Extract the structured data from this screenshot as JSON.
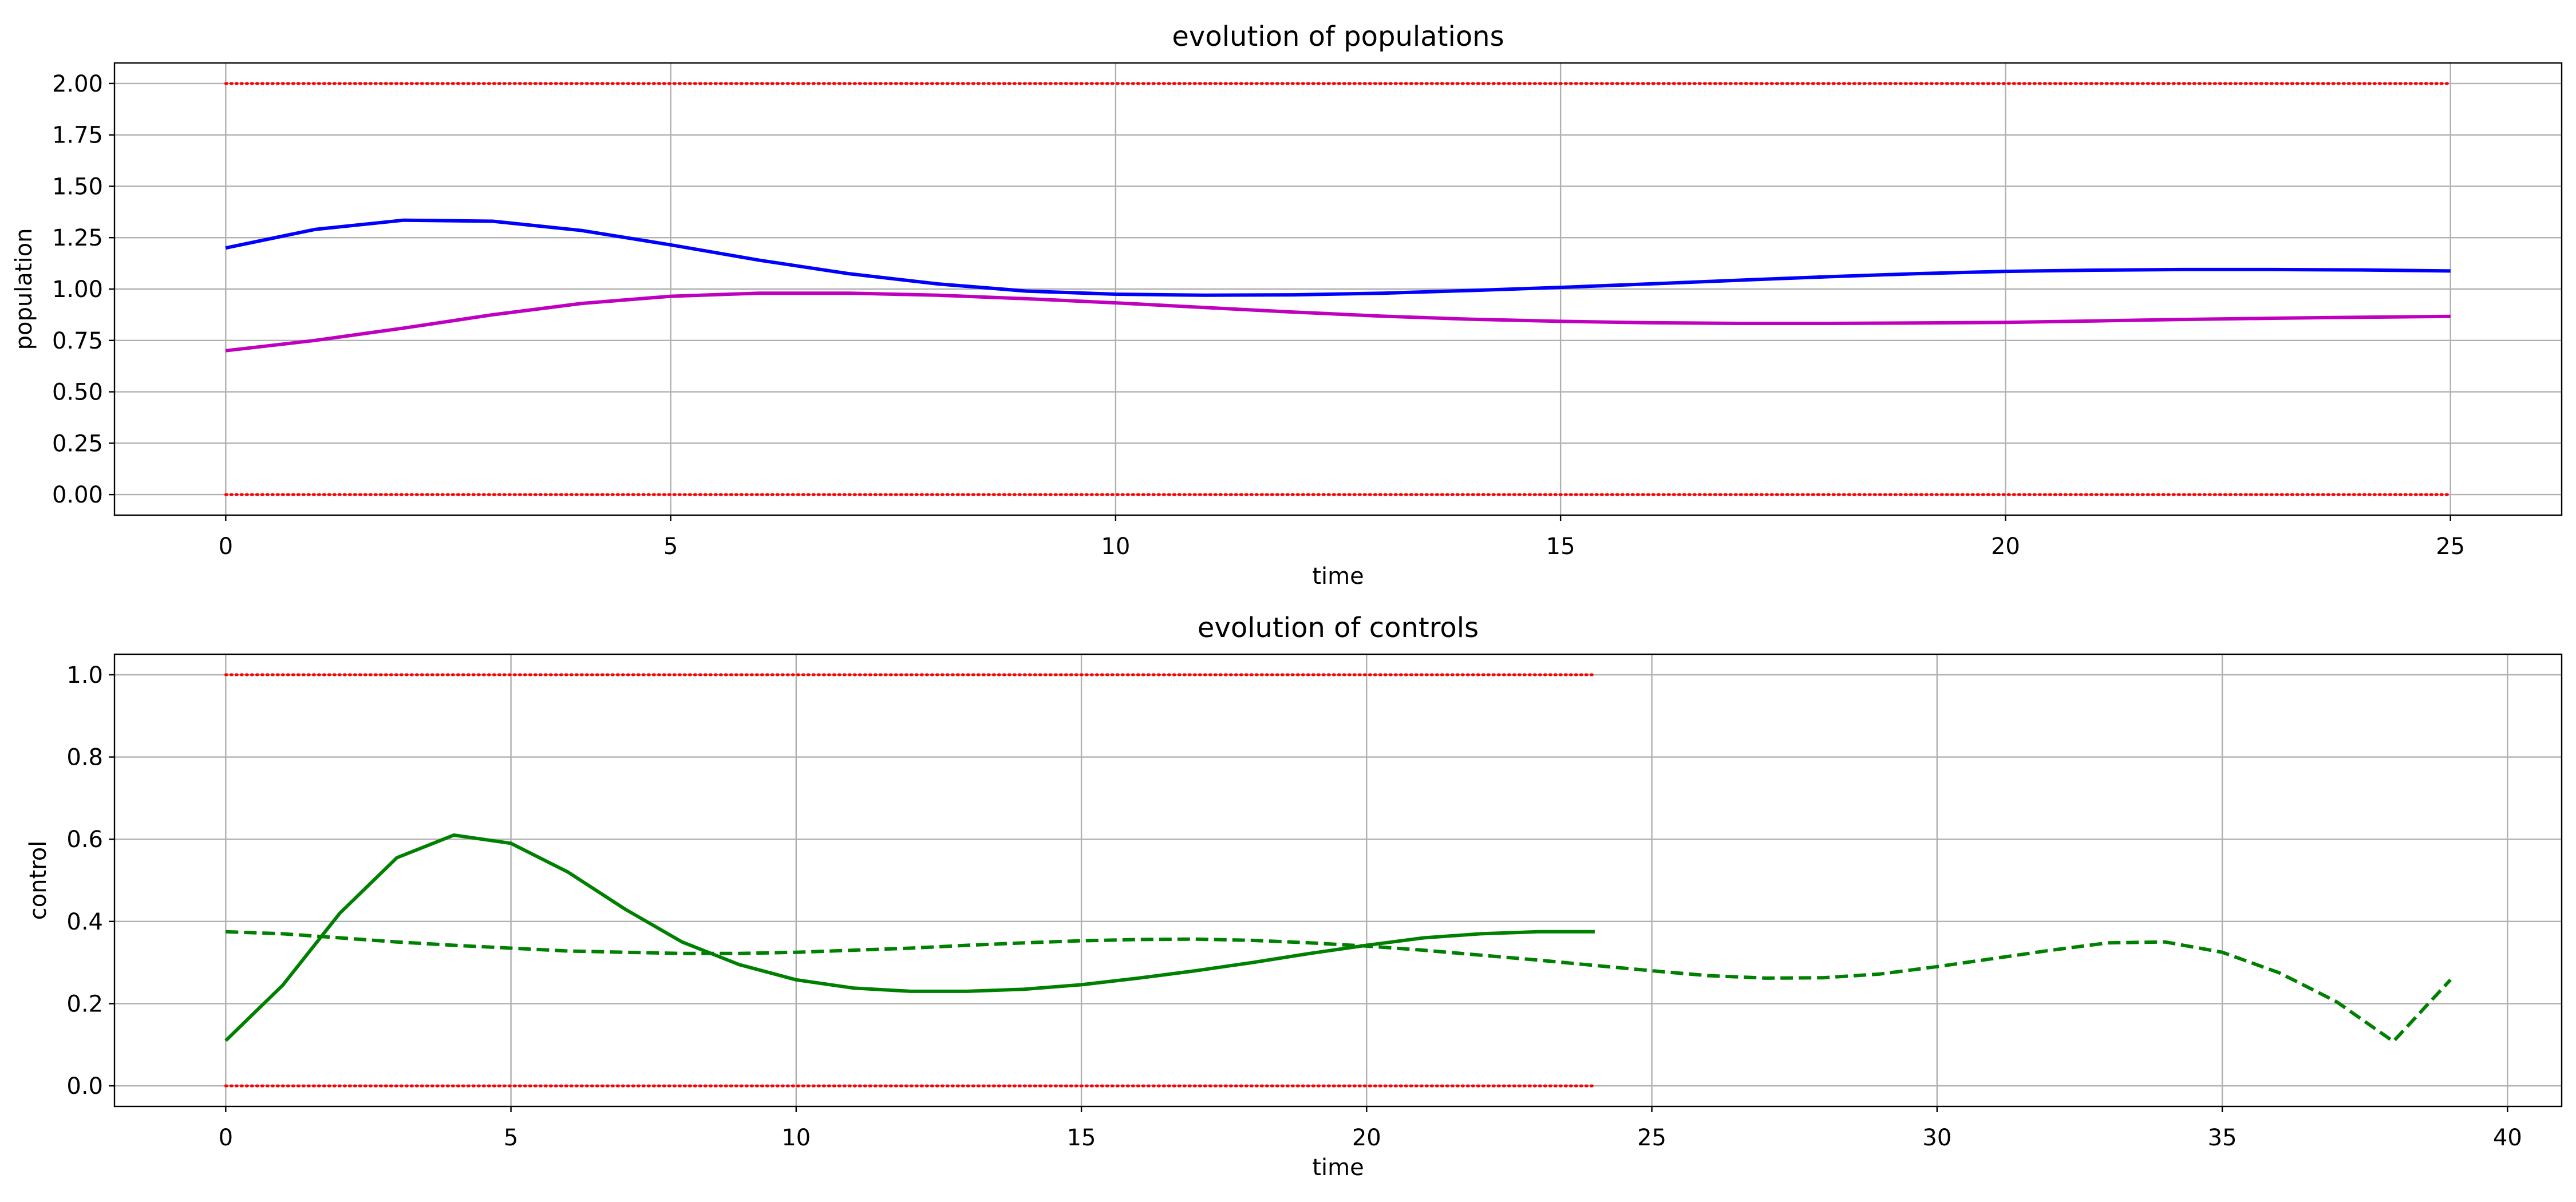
{
  "colors": {
    "grid": "#b0b0b0",
    "axes": "#000000",
    "bound": "#ff0000",
    "prey": "#0000ff",
    "predator": "#bf00bf",
    "control": "#008000"
  },
  "chart_data": [
    {
      "type": "line",
      "title": "evolution of populations",
      "xlabel": "time",
      "ylabel": "population",
      "xlim": [
        -1.25,
        26.25
      ],
      "ylim": [
        -0.1,
        2.1
      ],
      "grid": true,
      "xticks": [
        0,
        5,
        10,
        15,
        20,
        25
      ],
      "yticks": [
        0,
        0.25,
        0.5,
        0.75,
        1.0,
        1.25,
        1.5,
        1.75,
        2.0
      ],
      "yticklabels": [
        "0.00",
        "0.25",
        "0.50",
        "0.75",
        "1.00",
        "1.25",
        "1.50",
        "1.75",
        "2.00"
      ],
      "series": [
        {
          "color": "#0000ff",
          "style": "solid",
          "x": [
            0,
            1,
            2,
            3,
            4,
            5,
            6,
            7,
            8,
            9,
            10,
            11,
            12,
            13,
            14,
            15,
            16,
            17,
            18,
            19,
            20,
            21,
            22,
            23,
            24,
            25
          ],
          "y": [
            1.2,
            1.29,
            1.335,
            1.33,
            1.285,
            1.215,
            1.14,
            1.075,
            1.025,
            0.99,
            0.975,
            0.97,
            0.972,
            0.98,
            0.993,
            1.008,
            1.025,
            1.043,
            1.06,
            1.075,
            1.086,
            1.092,
            1.095,
            1.095,
            1.093,
            1.088
          ]
        },
        {
          "color": "#bf00bf",
          "style": "solid",
          "x": [
            0,
            1,
            2,
            3,
            4,
            5,
            6,
            7,
            8,
            9,
            10,
            11,
            12,
            13,
            14,
            15,
            16,
            17,
            18,
            19,
            20,
            21,
            22,
            23,
            24,
            25
          ],
          "y": [
            0.7,
            0.75,
            0.81,
            0.875,
            0.93,
            0.965,
            0.98,
            0.98,
            0.97,
            0.953,
            0.933,
            0.91,
            0.888,
            0.868,
            0.853,
            0.843,
            0.836,
            0.833,
            0.833,
            0.835,
            0.838,
            0.845,
            0.852,
            0.858,
            0.863,
            0.867
          ]
        },
        {
          "color": "#ff0000",
          "style": "dotted",
          "x": [
            0,
            25
          ],
          "y": [
            2.0,
            2.0
          ]
        },
        {
          "color": "#ff0000",
          "style": "dotted",
          "x": [
            0,
            25
          ],
          "y": [
            0.0,
            0.0
          ]
        }
      ]
    },
    {
      "type": "line",
      "title": "evolution of controls",
      "xlabel": "time",
      "ylabel": "control",
      "xlim": [
        -1.95,
        40.95
      ],
      "ylim": [
        -0.05,
        1.05
      ],
      "grid": true,
      "xticks": [
        0,
        5,
        10,
        15,
        20,
        25,
        30,
        35,
        40
      ],
      "yticks": [
        0,
        0.2,
        0.4,
        0.6,
        0.8,
        1.0
      ],
      "yticklabels": [
        "0.0",
        "0.2",
        "0.4",
        "0.6",
        "0.8",
        "1.0"
      ],
      "series": [
        {
          "color": "#008000",
          "style": "solid",
          "x": [
            0,
            1,
            2,
            3,
            4,
            5,
            6,
            7,
            8,
            9,
            10,
            11,
            12,
            13,
            14,
            15,
            16,
            17,
            18,
            19,
            20,
            21,
            22,
            23,
            24
          ],
          "y": [
            0.11,
            0.245,
            0.42,
            0.555,
            0.61,
            0.59,
            0.52,
            0.43,
            0.35,
            0.295,
            0.258,
            0.238,
            0.23,
            0.23,
            0.235,
            0.246,
            0.262,
            0.28,
            0.3,
            0.322,
            0.342,
            0.36,
            0.37,
            0.375,
            0.375
          ]
        },
        {
          "color": "#008000",
          "style": "dashed",
          "x": [
            0,
            1,
            2,
            3,
            4,
            5,
            6,
            7,
            8,
            9,
            10,
            11,
            12,
            13,
            14,
            15,
            16,
            17,
            18,
            19,
            20,
            21,
            22,
            23,
            24,
            25,
            26,
            27,
            28,
            29,
            30,
            31,
            32,
            33,
            34,
            35,
            36,
            37,
            38,
            39
          ],
          "y": [
            0.375,
            0.37,
            0.36,
            0.35,
            0.342,
            0.335,
            0.328,
            0.325,
            0.322,
            0.322,
            0.325,
            0.33,
            0.335,
            0.342,
            0.348,
            0.353,
            0.356,
            0.357,
            0.354,
            0.348,
            0.34,
            0.33,
            0.318,
            0.306,
            0.293,
            0.28,
            0.268,
            0.262,
            0.263,
            0.272,
            0.29,
            0.31,
            0.33,
            0.348,
            0.35,
            0.325,
            0.275,
            0.205,
            0.108,
            0.258
          ]
        },
        {
          "color": "#ff0000",
          "style": "dotted",
          "x": [
            0,
            24
          ],
          "y": [
            1.0,
            1.0
          ]
        },
        {
          "color": "#ff0000",
          "style": "dotted",
          "x": [
            0,
            24
          ],
          "y": [
            0.0,
            0.0
          ]
        }
      ]
    }
  ]
}
